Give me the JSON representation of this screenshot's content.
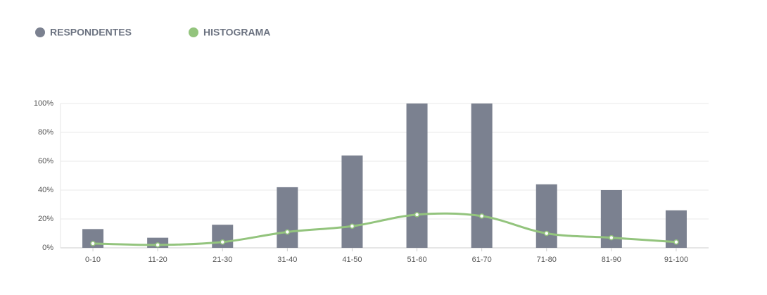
{
  "chart_data": {
    "type": "bar",
    "categories": [
      "0-10",
      "11-20",
      "21-30",
      "31-40",
      "41-50",
      "51-60",
      "61-70",
      "71-80",
      "81-90",
      "91-100"
    ],
    "series": [
      {
        "name": "RESPONDENTES",
        "type": "bar",
        "color": "#7b8190",
        "values": [
          13,
          7,
          16,
          42,
          64,
          100,
          100,
          44,
          40,
          26
        ]
      },
      {
        "name": "HISTOGRAMA",
        "type": "line",
        "color": "#93c47d",
        "values": [
          3,
          2,
          4,
          11,
          15,
          23,
          22,
          10,
          7,
          4
        ]
      }
    ],
    "ylim": [
      0,
      100
    ],
    "yticks": [
      {
        "value": 0,
        "label": "0%"
      },
      {
        "value": 20,
        "label": "20%"
      },
      {
        "value": 40,
        "label": "40%"
      },
      {
        "value": 60,
        "label": "60%"
      },
      {
        "value": 80,
        "label": "80%"
      },
      {
        "value": 100,
        "label": "100%"
      }
    ],
    "grid": true,
    "legend": "top-left"
  }
}
